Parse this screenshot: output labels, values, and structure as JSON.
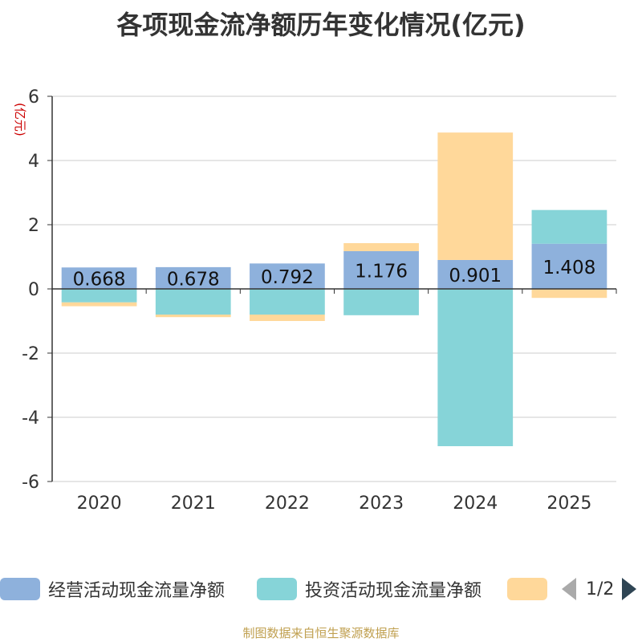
{
  "chart_data": {
    "type": "bar",
    "stacked": true,
    "title": "各项现金流净额历年变化情况(亿元)",
    "ylabel": "(亿元)",
    "xlabel": "",
    "ylim": [
      -6,
      6
    ],
    "yticks": [
      6,
      4,
      2,
      0,
      -2,
      -4,
      -6
    ],
    "categories": [
      "2020",
      "2021",
      "2022",
      "2023",
      "2024",
      "2025"
    ],
    "series": [
      {
        "name": "经营活动现金流量净额",
        "color": "#8eb1dc",
        "values": [
          0.668,
          0.678,
          0.792,
          1.176,
          0.901,
          1.408
        ],
        "labels": [
          "0.668",
          "0.678",
          "0.792",
          "1.176",
          "0.901",
          "1.408"
        ]
      },
      {
        "name": "投资活动现金流量净额",
        "color": "#86d4d8",
        "values": [
          -0.42,
          -0.8,
          -0.8,
          -0.82,
          -4.9,
          1.05
        ]
      },
      {
        "name": "",
        "color": "#ffd89a",
        "values": [
          -0.12,
          -0.08,
          -0.2,
          0.25,
          3.97,
          -0.28
        ]
      }
    ],
    "legend_position": "bottom"
  },
  "legend": {
    "pager": "1/2"
  },
  "source": "制图数据来自恒生聚源数据库"
}
